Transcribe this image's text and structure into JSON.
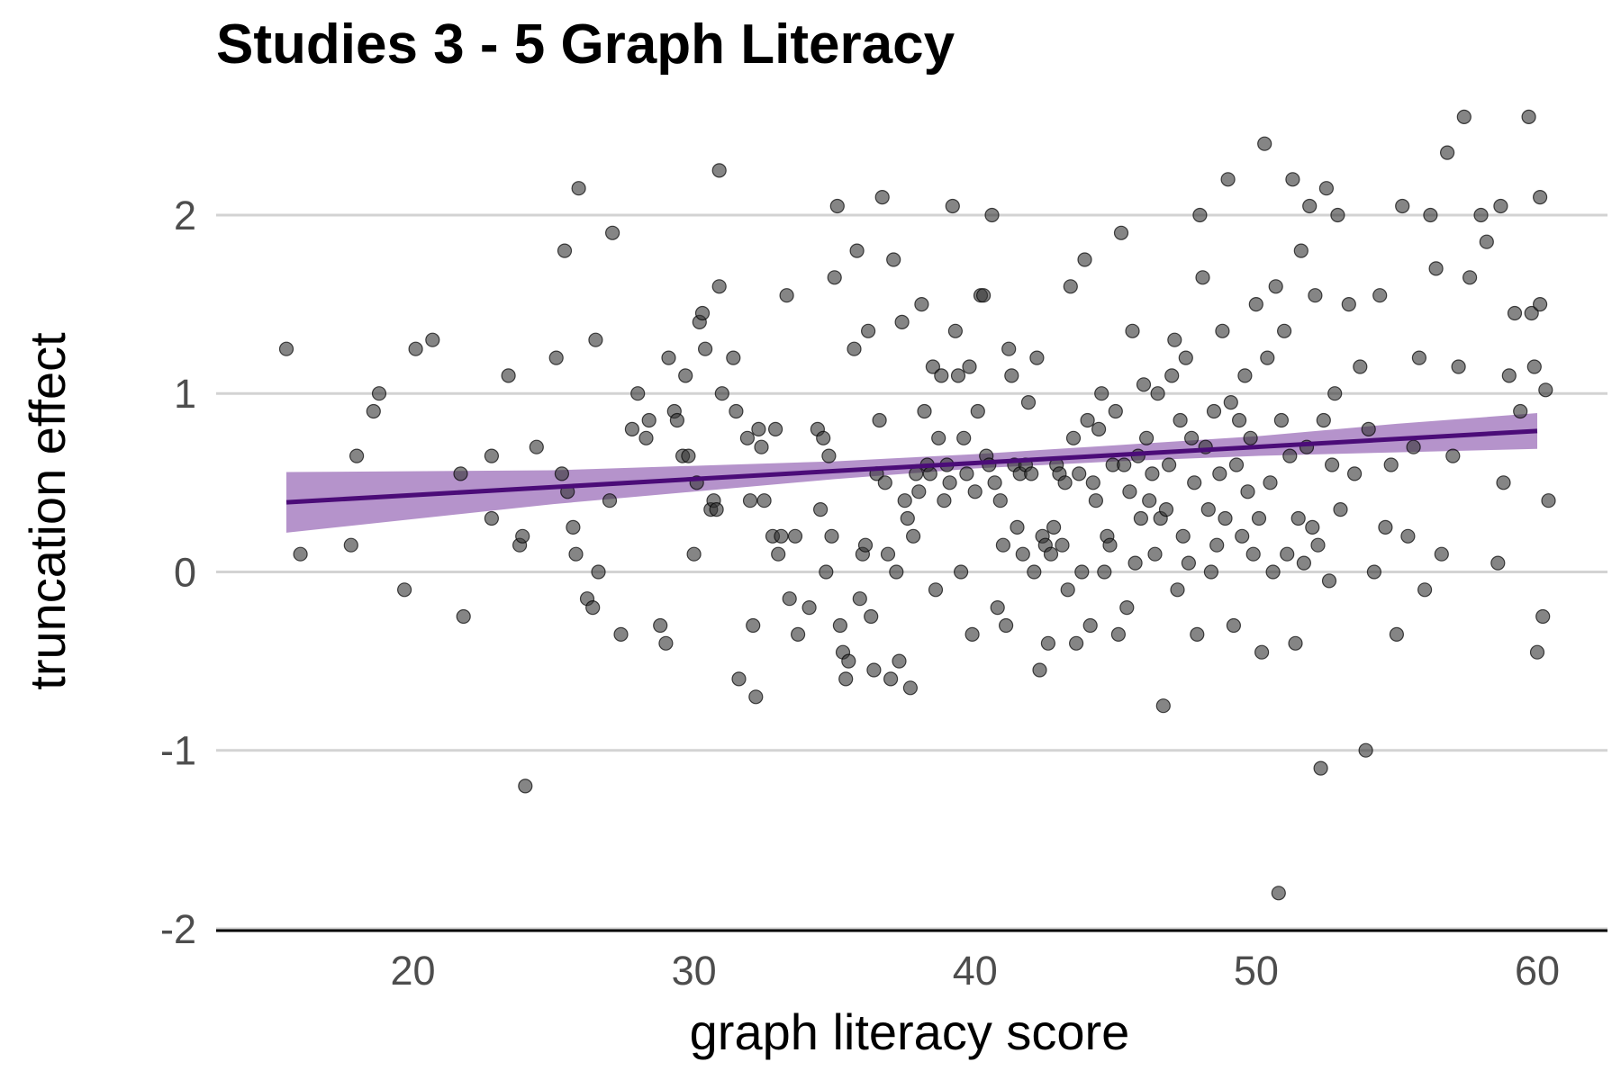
{
  "chart_data": {
    "type": "scatter",
    "title": "Studies 3 - 5 Graph Literacy",
    "xlabel": "graph literacy score",
    "ylabel": "truncation effect",
    "xlim": [
      13,
      62.5
    ],
    "ylim": [
      -2,
      2.6
    ],
    "x_ticks": [
      20,
      30,
      40,
      50,
      60
    ],
    "y_ticks": [
      -2,
      -1,
      0,
      1,
      2
    ],
    "grid": "horizontal major",
    "point_color": "#333333",
    "fit_color": "#4b0c78",
    "band_color": "#a278be",
    "fit_line": {
      "x": [
        15.5,
        60
      ],
      "y": [
        0.39,
        0.79
      ]
    },
    "confidence_band": {
      "x": [
        15.5,
        25,
        35,
        40,
        45,
        50,
        55,
        60
      ],
      "lower": [
        0.22,
        0.38,
        0.52,
        0.58,
        0.62,
        0.65,
        0.67,
        0.69
      ],
      "upper": [
        0.56,
        0.57,
        0.62,
        0.66,
        0.71,
        0.76,
        0.83,
        0.89
      ]
    },
    "points": [
      {
        "x": 15.5,
        "y": 1.25
      },
      {
        "x": 16,
        "y": 0.1
      },
      {
        "x": 17.8,
        "y": 0.15
      },
      {
        "x": 18,
        "y": 0.65
      },
      {
        "x": 18.6,
        "y": 0.9
      },
      {
        "x": 18.8,
        "y": 1.0
      },
      {
        "x": 19.7,
        "y": -0.1
      },
      {
        "x": 20.1,
        "y": 1.25
      },
      {
        "x": 20.7,
        "y": 1.3
      },
      {
        "x": 21.7,
        "y": 0.55
      },
      {
        "x": 21.8,
        "y": -0.25
      },
      {
        "x": 22.8,
        "y": 0.65
      },
      {
        "x": 22.8,
        "y": 0.3
      },
      {
        "x": 23.4,
        "y": 1.1
      },
      {
        "x": 23.8,
        "y": 0.15
      },
      {
        "x": 23.9,
        "y": 0.2
      },
      {
        "x": 24,
        "y": -1.2
      },
      {
        "x": 24.4,
        "y": 0.7
      },
      {
        "x": 25.1,
        "y": 1.2
      },
      {
        "x": 25.3,
        "y": 0.55
      },
      {
        "x": 25.4,
        "y": 1.8
      },
      {
        "x": 25.5,
        "y": 0.45
      },
      {
        "x": 25.7,
        "y": 0.25
      },
      {
        "x": 25.8,
        "y": 0.1
      },
      {
        "x": 25.9,
        "y": 2.15
      },
      {
        "x": 26.2,
        "y": -0.15
      },
      {
        "x": 26.4,
        "y": -0.2
      },
      {
        "x": 26.5,
        "y": 1.3
      },
      {
        "x": 26.6,
        "y": 0.0
      },
      {
        "x": 27,
        "y": 0.4
      },
      {
        "x": 27.1,
        "y": 1.9
      },
      {
        "x": 27.4,
        "y": -0.35
      },
      {
        "x": 27.8,
        "y": 0.8
      },
      {
        "x": 28,
        "y": 1.0
      },
      {
        "x": 28.3,
        "y": 0.75
      },
      {
        "x": 28.4,
        "y": 0.85
      },
      {
        "x": 28.8,
        "y": -0.3
      },
      {
        "x": 29,
        "y": -0.4
      },
      {
        "x": 29.1,
        "y": 1.2
      },
      {
        "x": 29.3,
        "y": 0.9
      },
      {
        "x": 29.4,
        "y": 0.85
      },
      {
        "x": 29.6,
        "y": 0.65
      },
      {
        "x": 29.7,
        "y": 1.1
      },
      {
        "x": 29.8,
        "y": 0.65
      },
      {
        "x": 30,
        "y": 0.1
      },
      {
        "x": 30.1,
        "y": 0.5
      },
      {
        "x": 30.2,
        "y": 1.4
      },
      {
        "x": 30.3,
        "y": 1.45
      },
      {
        "x": 30.4,
        "y": 1.25
      },
      {
        "x": 30.6,
        "y": 0.35
      },
      {
        "x": 30.7,
        "y": 0.4
      },
      {
        "x": 30.8,
        "y": 0.35
      },
      {
        "x": 30.9,
        "y": 1.6
      },
      {
        "x": 30.9,
        "y": 2.25
      },
      {
        "x": 31,
        "y": 1.0
      },
      {
        "x": 31.4,
        "y": 1.2
      },
      {
        "x": 31.5,
        "y": 0.9
      },
      {
        "x": 31.6,
        "y": -0.6
      },
      {
        "x": 31.9,
        "y": 0.75
      },
      {
        "x": 32,
        "y": 0.4
      },
      {
        "x": 32.1,
        "y": -0.3
      },
      {
        "x": 32.2,
        "y": -0.7
      },
      {
        "x": 32.3,
        "y": 0.8
      },
      {
        "x": 32.4,
        "y": 0.7
      },
      {
        "x": 32.5,
        "y": 0.4
      },
      {
        "x": 32.8,
        "y": 0.2
      },
      {
        "x": 32.9,
        "y": 0.8
      },
      {
        "x": 33,
        "y": 0.1
      },
      {
        "x": 33.1,
        "y": 0.2
      },
      {
        "x": 33.3,
        "y": 1.55
      },
      {
        "x": 33.4,
        "y": -0.15
      },
      {
        "x": 33.6,
        "y": 0.2
      },
      {
        "x": 33.7,
        "y": -0.35
      },
      {
        "x": 34.1,
        "y": -0.2
      },
      {
        "x": 34.4,
        "y": 0.8
      },
      {
        "x": 34.5,
        "y": 0.35
      },
      {
        "x": 34.6,
        "y": 0.75
      },
      {
        "x": 34.7,
        "y": 0.0
      },
      {
        "x": 34.8,
        "y": 0.65
      },
      {
        "x": 34.9,
        "y": 0.2
      },
      {
        "x": 35,
        "y": 1.65
      },
      {
        "x": 35.1,
        "y": 2.05
      },
      {
        "x": 35.2,
        "y": -0.3
      },
      {
        "x": 35.3,
        "y": -0.45
      },
      {
        "x": 35.4,
        "y": -0.6
      },
      {
        "x": 35.5,
        "y": -0.5
      },
      {
        "x": 35.7,
        "y": 1.25
      },
      {
        "x": 35.8,
        "y": 1.8
      },
      {
        "x": 35.9,
        "y": -0.15
      },
      {
        "x": 36,
        "y": 0.1
      },
      {
        "x": 36.1,
        "y": 0.15
      },
      {
        "x": 36.2,
        "y": 1.35
      },
      {
        "x": 36.3,
        "y": -0.25
      },
      {
        "x": 36.4,
        "y": -0.55
      },
      {
        "x": 36.5,
        "y": 0.55
      },
      {
        "x": 36.6,
        "y": 0.85
      },
      {
        "x": 36.7,
        "y": 2.1
      },
      {
        "x": 36.8,
        "y": 0.5
      },
      {
        "x": 36.9,
        "y": 0.1
      },
      {
        "x": 37,
        "y": -0.6
      },
      {
        "x": 37.1,
        "y": 1.75
      },
      {
        "x": 37.2,
        "y": 0.0
      },
      {
        "x": 37.3,
        "y": -0.5
      },
      {
        "x": 37.4,
        "y": 1.4
      },
      {
        "x": 37.5,
        "y": 0.4
      },
      {
        "x": 37.6,
        "y": 0.3
      },
      {
        "x": 37.7,
        "y": -0.65
      },
      {
        "x": 37.8,
        "y": 0.2
      },
      {
        "x": 37.9,
        "y": 0.55
      },
      {
        "x": 38,
        "y": 0.45
      },
      {
        "x": 38.1,
        "y": 1.5
      },
      {
        "x": 38.2,
        "y": 0.9
      },
      {
        "x": 38.3,
        "y": 0.6
      },
      {
        "x": 38.4,
        "y": 0.55
      },
      {
        "x": 38.5,
        "y": 1.15
      },
      {
        "x": 38.6,
        "y": -0.1
      },
      {
        "x": 38.7,
        "y": 0.75
      },
      {
        "x": 38.8,
        "y": 1.1
      },
      {
        "x": 38.9,
        "y": 0.4
      },
      {
        "x": 39,
        "y": 0.6
      },
      {
        "x": 39.1,
        "y": 0.5
      },
      {
        "x": 39.2,
        "y": 2.05
      },
      {
        "x": 39.3,
        "y": 1.35
      },
      {
        "x": 39.4,
        "y": 1.1
      },
      {
        "x": 39.5,
        "y": 0.0
      },
      {
        "x": 39.6,
        "y": 0.75
      },
      {
        "x": 39.7,
        "y": 0.55
      },
      {
        "x": 39.8,
        "y": 1.15
      },
      {
        "x": 39.9,
        "y": -0.35
      },
      {
        "x": 40,
        "y": 0.45
      },
      {
        "x": 40.1,
        "y": 0.9
      },
      {
        "x": 40.2,
        "y": 1.55
      },
      {
        "x": 40.3,
        "y": 1.55
      },
      {
        "x": 40.4,
        "y": 0.65
      },
      {
        "x": 40.5,
        "y": 0.6
      },
      {
        "x": 40.6,
        "y": 2.0
      },
      {
        "x": 40.7,
        "y": 0.5
      },
      {
        "x": 40.8,
        "y": -0.2
      },
      {
        "x": 40.9,
        "y": 0.4
      },
      {
        "x": 41,
        "y": 0.15
      },
      {
        "x": 41.1,
        "y": -0.3
      },
      {
        "x": 41.2,
        "y": 1.25
      },
      {
        "x": 41.3,
        "y": 1.1
      },
      {
        "x": 41.4,
        "y": 0.6
      },
      {
        "x": 41.5,
        "y": 0.25
      },
      {
        "x": 41.6,
        "y": 0.55
      },
      {
        "x": 41.7,
        "y": 0.1
      },
      {
        "x": 41.8,
        "y": 0.6
      },
      {
        "x": 41.9,
        "y": 0.95
      },
      {
        "x": 42,
        "y": 0.55
      },
      {
        "x": 42.1,
        "y": 0.0
      },
      {
        "x": 42.2,
        "y": 1.2
      },
      {
        "x": 42.3,
        "y": -0.55
      },
      {
        "x": 42.4,
        "y": 0.2
      },
      {
        "x": 42.5,
        "y": 0.15
      },
      {
        "x": 42.6,
        "y": -0.4
      },
      {
        "x": 42.7,
        "y": 0.1
      },
      {
        "x": 42.8,
        "y": 0.25
      },
      {
        "x": 42.9,
        "y": 0.6
      },
      {
        "x": 43,
        "y": 0.55
      },
      {
        "x": 43.1,
        "y": 0.15
      },
      {
        "x": 43.2,
        "y": 0.5
      },
      {
        "x": 43.3,
        "y": -0.1
      },
      {
        "x": 43.4,
        "y": 1.6
      },
      {
        "x": 43.5,
        "y": 0.75
      },
      {
        "x": 43.6,
        "y": -0.4
      },
      {
        "x": 43.7,
        "y": 0.55
      },
      {
        "x": 43.8,
        "y": 0.0
      },
      {
        "x": 43.9,
        "y": 1.75
      },
      {
        "x": 44,
        "y": 0.85
      },
      {
        "x": 44.1,
        "y": -0.3
      },
      {
        "x": 44.2,
        "y": 0.5
      },
      {
        "x": 44.3,
        "y": 0.4
      },
      {
        "x": 44.4,
        "y": 0.8
      },
      {
        "x": 44.5,
        "y": 1.0
      },
      {
        "x": 44.6,
        "y": 0.0
      },
      {
        "x": 44.7,
        "y": 0.2
      },
      {
        "x": 44.8,
        "y": 0.15
      },
      {
        "x": 44.9,
        "y": 0.6
      },
      {
        "x": 45,
        "y": 0.9
      },
      {
        "x": 45.1,
        "y": -0.35
      },
      {
        "x": 45.2,
        "y": 1.9
      },
      {
        "x": 45.3,
        "y": 0.6
      },
      {
        "x": 45.4,
        "y": -0.2
      },
      {
        "x": 45.5,
        "y": 0.45
      },
      {
        "x": 45.6,
        "y": 1.35
      },
      {
        "x": 45.7,
        "y": 0.05
      },
      {
        "x": 45.8,
        "y": 0.65
      },
      {
        "x": 45.9,
        "y": 0.3
      },
      {
        "x": 46,
        "y": 1.05
      },
      {
        "x": 46.1,
        "y": 0.75
      },
      {
        "x": 46.2,
        "y": 0.4
      },
      {
        "x": 46.3,
        "y": 0.55
      },
      {
        "x": 46.4,
        "y": 0.1
      },
      {
        "x": 46.5,
        "y": 1.0
      },
      {
        "x": 46.6,
        "y": 0.3
      },
      {
        "x": 46.7,
        "y": -0.75
      },
      {
        "x": 46.8,
        "y": 0.35
      },
      {
        "x": 46.9,
        "y": 0.6
      },
      {
        "x": 47,
        "y": 1.1
      },
      {
        "x": 47.1,
        "y": 1.3
      },
      {
        "x": 47.2,
        "y": -0.1
      },
      {
        "x": 47.3,
        "y": 0.85
      },
      {
        "x": 47.4,
        "y": 0.2
      },
      {
        "x": 47.5,
        "y": 1.2
      },
      {
        "x": 47.6,
        "y": 0.05
      },
      {
        "x": 47.7,
        "y": 0.75
      },
      {
        "x": 47.8,
        "y": 0.5
      },
      {
        "x": 47.9,
        "y": -0.35
      },
      {
        "x": 48,
        "y": 2.0
      },
      {
        "x": 48.1,
        "y": 1.65
      },
      {
        "x": 48.2,
        "y": 0.7
      },
      {
        "x": 48.3,
        "y": 0.35
      },
      {
        "x": 48.4,
        "y": 0.0
      },
      {
        "x": 48.5,
        "y": 0.9
      },
      {
        "x": 48.6,
        "y": 0.15
      },
      {
        "x": 48.7,
        "y": 0.55
      },
      {
        "x": 48.8,
        "y": 1.35
      },
      {
        "x": 48.9,
        "y": 0.3
      },
      {
        "x": 49,
        "y": 2.2
      },
      {
        "x": 49.1,
        "y": 0.95
      },
      {
        "x": 49.2,
        "y": -0.3
      },
      {
        "x": 49.3,
        "y": 0.6
      },
      {
        "x": 49.4,
        "y": 0.85
      },
      {
        "x": 49.5,
        "y": 0.2
      },
      {
        "x": 49.6,
        "y": 1.1
      },
      {
        "x": 49.7,
        "y": 0.45
      },
      {
        "x": 49.8,
        "y": 0.75
      },
      {
        "x": 49.9,
        "y": 0.1
      },
      {
        "x": 50,
        "y": 1.5
      },
      {
        "x": 50.1,
        "y": 0.3
      },
      {
        "x": 50.2,
        "y": -0.45
      },
      {
        "x": 50.3,
        "y": 2.4
      },
      {
        "x": 50.4,
        "y": 1.2
      },
      {
        "x": 50.5,
        "y": 0.5
      },
      {
        "x": 50.6,
        "y": 0.0
      },
      {
        "x": 50.7,
        "y": 1.6
      },
      {
        "x": 50.8,
        "y": -1.8
      },
      {
        "x": 50.9,
        "y": 0.85
      },
      {
        "x": 51,
        "y": 1.35
      },
      {
        "x": 51.1,
        "y": 0.1
      },
      {
        "x": 51.2,
        "y": 0.65
      },
      {
        "x": 51.3,
        "y": 2.2
      },
      {
        "x": 51.4,
        "y": -0.4
      },
      {
        "x": 51.5,
        "y": 0.3
      },
      {
        "x": 51.6,
        "y": 1.8
      },
      {
        "x": 51.7,
        "y": 0.05
      },
      {
        "x": 51.8,
        "y": 0.7
      },
      {
        "x": 51.9,
        "y": 2.05
      },
      {
        "x": 52,
        "y": 0.25
      },
      {
        "x": 52.1,
        "y": 1.55
      },
      {
        "x": 52.2,
        "y": 0.15
      },
      {
        "x": 52.3,
        "y": -1.1
      },
      {
        "x": 52.4,
        "y": 0.85
      },
      {
        "x": 52.5,
        "y": 2.15
      },
      {
        "x": 52.6,
        "y": -0.05
      },
      {
        "x": 52.7,
        "y": 0.6
      },
      {
        "x": 52.8,
        "y": 1.0
      },
      {
        "x": 52.9,
        "y": 2.0
      },
      {
        "x": 53,
        "y": 0.35
      },
      {
        "x": 53.3,
        "y": 1.5
      },
      {
        "x": 53.5,
        "y": 0.55
      },
      {
        "x": 53.7,
        "y": 1.15
      },
      {
        "x": 53.9,
        "y": -1.0
      },
      {
        "x": 54,
        "y": 0.8
      },
      {
        "x": 54.2,
        "y": 0.0
      },
      {
        "x": 54.4,
        "y": 1.55
      },
      {
        "x": 54.6,
        "y": 0.25
      },
      {
        "x": 54.8,
        "y": 0.6
      },
      {
        "x": 55,
        "y": -0.35
      },
      {
        "x": 55.2,
        "y": 2.05
      },
      {
        "x": 55.4,
        "y": 0.2
      },
      {
        "x": 55.6,
        "y": 0.7
      },
      {
        "x": 55.8,
        "y": 1.2
      },
      {
        "x": 56,
        "y": -0.1
      },
      {
        "x": 56.2,
        "y": 2.0
      },
      {
        "x": 56.4,
        "y": 1.7
      },
      {
        "x": 56.6,
        "y": 0.1
      },
      {
        "x": 56.8,
        "y": 2.35
      },
      {
        "x": 57,
        "y": 0.65
      },
      {
        "x": 57.2,
        "y": 1.15
      },
      {
        "x": 57.4,
        "y": 2.55
      },
      {
        "x": 57.6,
        "y": 1.65
      },
      {
        "x": 58,
        "y": 2.0
      },
      {
        "x": 58.2,
        "y": 1.85
      },
      {
        "x": 58.6,
        "y": 0.05
      },
      {
        "x": 58.7,
        "y": 2.05
      },
      {
        "x": 58.8,
        "y": 0.5
      },
      {
        "x": 59,
        "y": 1.1
      },
      {
        "x": 59.2,
        "y": 1.45
      },
      {
        "x": 59.4,
        "y": 0.9
      },
      {
        "x": 59.7,
        "y": 2.55
      },
      {
        "x": 59.8,
        "y": 1.45
      },
      {
        "x": 59.9,
        "y": 1.15
      },
      {
        "x": 60,
        "y": -0.45
      },
      {
        "x": 60.1,
        "y": 2.1
      },
      {
        "x": 60.1,
        "y": 1.5
      },
      {
        "x": 60.2,
        "y": -0.25
      },
      {
        "x": 60.3,
        "y": 1.02
      },
      {
        "x": 60.4,
        "y": 0.4
      }
    ]
  }
}
